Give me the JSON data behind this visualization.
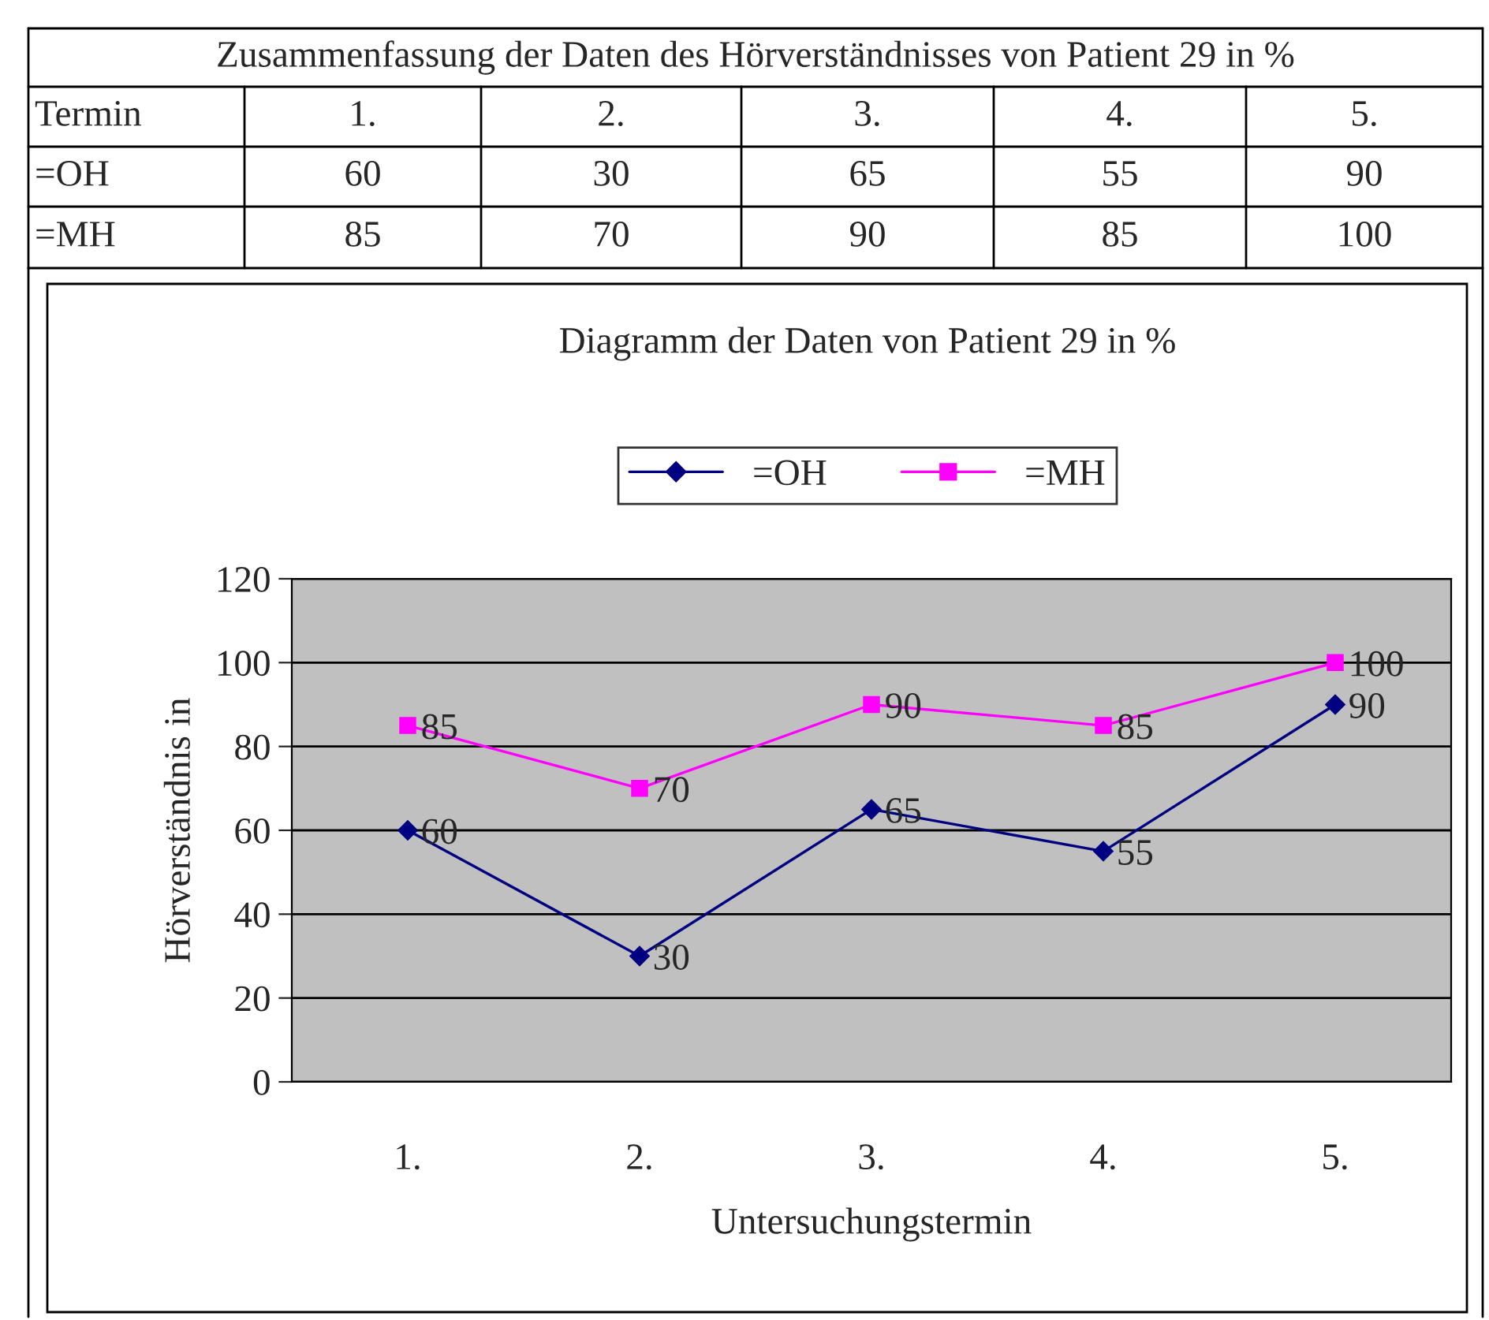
{
  "chart_data": {
    "type": "line",
    "title": "Zusammenfassung der Daten des Hörverständnisses von Patient 29 in %",
    "subtitle": "Diagramm der Daten von Patient 29 in %",
    "xlabel": "Untersuchungstermin",
    "ylabel": "Hörverständnis in",
    "annotations": [
      "Termin",
      "60",
      "30",
      "65",
      "55",
      "90",
      "85",
      "70",
      "90",
      "85",
      "100"
    ],
    "categories": [
      "1.",
      "2.",
      "3.",
      "4.",
      "5."
    ],
    "series": [
      {
        "name": "=OH",
        "color": "#000080",
        "marker": "diamond",
        "values": [
          60,
          30,
          65,
          55,
          90
        ],
        "value_labels": [
          "60",
          "30",
          "65",
          "55",
          "90"
        ]
      },
      {
        "name": "=MH",
        "color": "#ff00ff",
        "marker": "square",
        "values": [
          85,
          70,
          90,
          85,
          100
        ],
        "value_labels": [
          "85",
          "70",
          "90",
          "85",
          "100"
        ]
      }
    ],
    "ylim": [
      0,
      120
    ],
    "yticks": [
      0,
      20,
      40,
      60,
      80,
      100,
      120
    ],
    "grid": "y",
    "legend": "top",
    "data_labels": true
  }
}
